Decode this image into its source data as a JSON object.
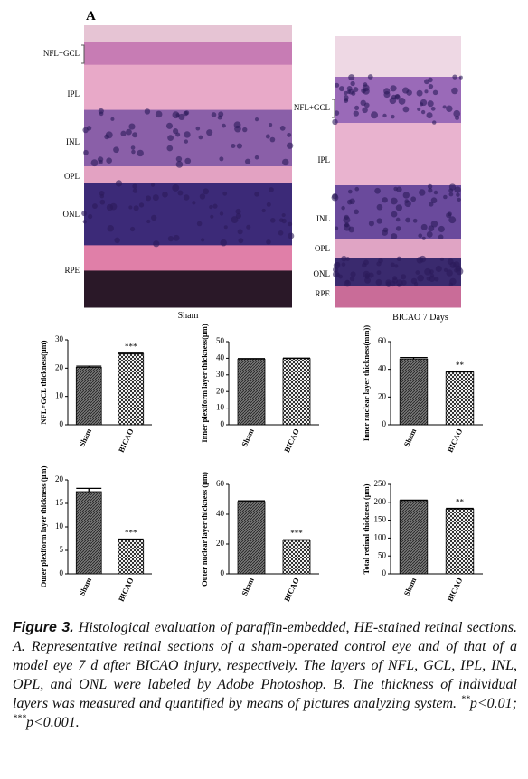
{
  "panel_label": "A",
  "images": [
    {
      "caption": "Sham",
      "labels": [
        "NFL+GCL",
        "IPL",
        "INL",
        "OPL",
        "ONL",
        "RPE"
      ]
    },
    {
      "caption": "BICAO 7 Days",
      "labels": [
        "NFL+GCL",
        "IPL",
        "INL",
        "OPL",
        "ONL",
        "RPE"
      ]
    }
  ],
  "chart_data": [
    {
      "type": "bar",
      "y_label": "NFL+GCL thickness(μm)",
      "categories": [
        "Sham",
        "BICAO"
      ],
      "values": [
        20.3,
        25
      ],
      "errors": [
        0.4,
        0.3
      ],
      "annotations": [
        null,
        "***"
      ],
      "ylim": [
        0,
        30
      ],
      "yticks": [
        0,
        10,
        20,
        30
      ]
    },
    {
      "type": "bar",
      "y_label": "Inner plexiform layer thickness(μm)",
      "categories": [
        "Sham",
        "BICAO"
      ],
      "values": [
        39.5,
        39.8
      ],
      "errors": [
        0.3,
        0.3
      ],
      "annotations": [
        null,
        null
      ],
      "ylim": [
        0,
        50
      ],
      "yticks": [
        0,
        10,
        20,
        30,
        40,
        50
      ]
    },
    {
      "type": "bar",
      "y_label": "Inner nuclear layer thickness(mm))",
      "categories": [
        "Sham",
        "BICAO"
      ],
      "values": [
        47.5,
        38
      ],
      "errors": [
        1,
        0.5
      ],
      "annotations": [
        null,
        "**"
      ],
      "ylim": [
        0,
        60
      ],
      "yticks": [
        0,
        20,
        40,
        60
      ]
    },
    {
      "type": "bar",
      "y_label": "Outer plexiform layer thickness (μm)",
      "categories": [
        "Sham",
        "BICAO"
      ],
      "values": [
        17.5,
        7.2
      ],
      "errors": [
        0.7,
        0.2
      ],
      "annotations": [
        null,
        "***"
      ],
      "ylim": [
        0,
        20
      ],
      "yticks": [
        0,
        5,
        10,
        15,
        20
      ]
    },
    {
      "type": "bar",
      "y_label": "Outer nuclear layer thickness (μm)",
      "categories": [
        "Sham",
        "BICAO"
      ],
      "values": [
        48.5,
        22.5
      ],
      "errors": [
        0.5,
        0.4
      ],
      "annotations": [
        null,
        "***"
      ],
      "ylim": [
        0,
        60
      ],
      "yticks": [
        0,
        20,
        40,
        60
      ]
    },
    {
      "type": "bar",
      "y_label": "Total retinal thickness (μm)",
      "categories": [
        "Sham",
        "BICAO"
      ],
      "values": [
        205,
        181
      ],
      "errors": [
        1,
        2
      ],
      "annotations": [
        null,
        "**"
      ],
      "ylim": [
        0,
        250
      ],
      "yticks": [
        0,
        50,
        100,
        150,
        200,
        250
      ]
    }
  ],
  "caption": {
    "label": "Figure 3.",
    "text": "Histological evaluation of paraffin-embedded, HE-stained retinal sections. A. Representative retinal sections of a sham-operated control eye and of that of a model eye 7 d after BICAO injury, respectively. The layers of NFL, GCL, IPL, INL, OPL, and ONL were labeled by Adobe Photoshop. B. The thickness of individual layers was measured and quantified by means of pictures analyzing system.",
    "sig1": "**",
    "p1": "p<0.01; ",
    "sig2": "***",
    "p2": "p<0.001."
  }
}
